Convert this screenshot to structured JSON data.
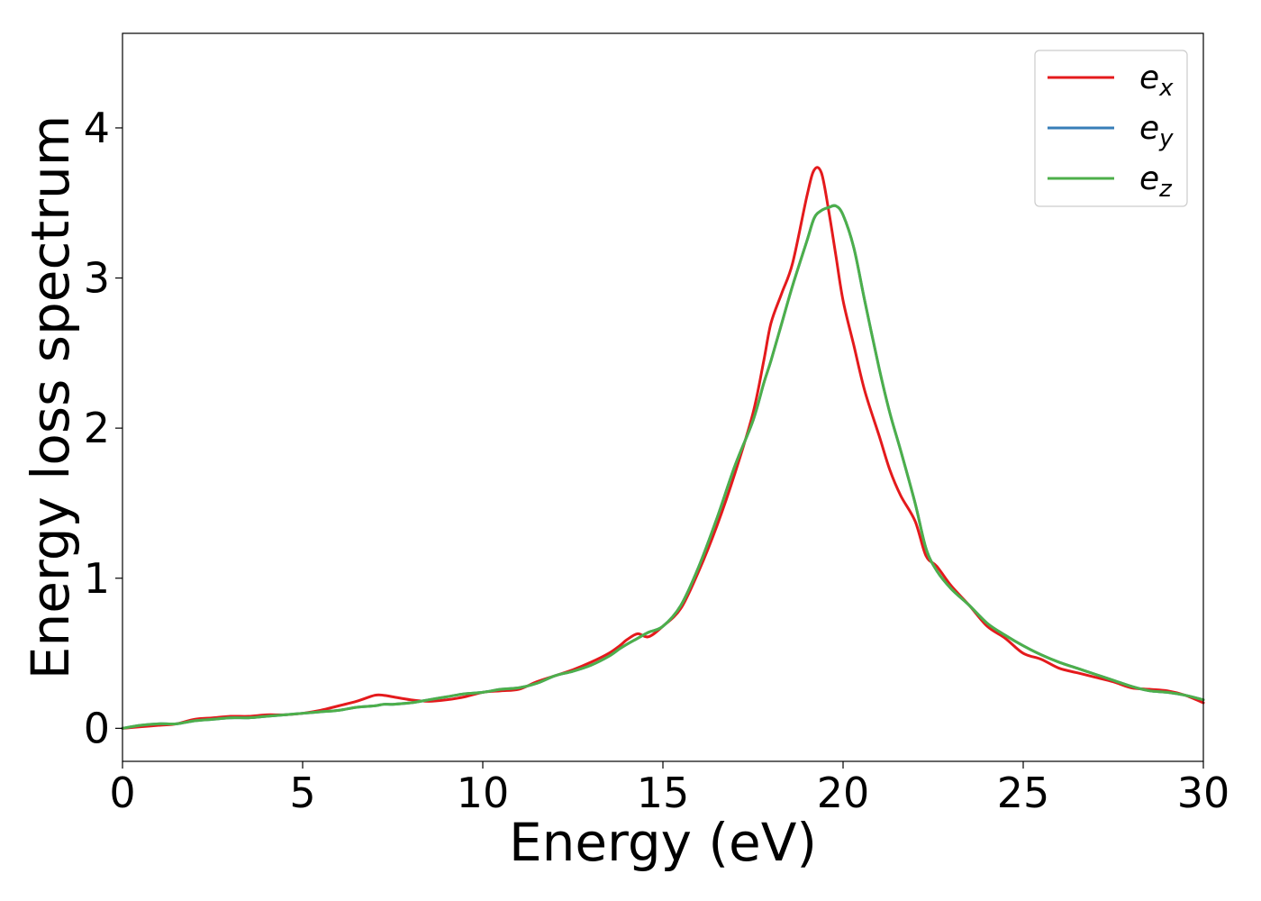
{
  "chart_data": {
    "type": "line",
    "xlabel": "Energy (eV)",
    "ylabel": "Energy loss spectrum",
    "xlim": [
      0,
      30
    ],
    "ylim": [
      -0.22,
      4.63
    ],
    "xticks": [
      "0",
      "5",
      "10",
      "15",
      "20",
      "25",
      "30"
    ],
    "yticks": [
      "0",
      "1",
      "2",
      "3",
      "4"
    ],
    "xtick_values": [
      0,
      5,
      10,
      15,
      20,
      25,
      30
    ],
    "ytick_values": [
      0,
      1,
      2,
      3,
      4
    ],
    "grid": false,
    "legend_position": "top-right",
    "x": [
      0,
      0.5,
      1,
      1.5,
      2,
      2.5,
      3,
      3.5,
      4,
      4.5,
      5,
      5.5,
      6,
      6.5,
      7,
      7.25,
      7.5,
      8,
      8.5,
      9,
      9.5,
      10,
      10.5,
      11,
      11.5,
      12,
      12.5,
      13,
      13.5,
      13.8,
      14,
      14.3,
      14.6,
      15,
      15.5,
      16,
      16.5,
      17,
      17.5,
      17.8,
      18,
      18.3,
      18.6,
      19,
      19.2,
      19.4,
      19.6,
      19.8,
      20,
      20.3,
      20.6,
      21,
      21.3,
      21.6,
      22,
      22.3,
      22.6,
      23,
      23.5,
      24,
      24.5,
      25,
      25.5,
      26,
      26.5,
      27,
      27.5,
      28,
      28.5,
      29,
      29.5,
      30
    ],
    "series": [
      {
        "name": "e",
        "sub": "x",
        "color": "#e41a1c",
        "values": [
          0.0,
          0.01,
          0.02,
          0.03,
          0.06,
          0.07,
          0.08,
          0.08,
          0.09,
          0.09,
          0.1,
          0.12,
          0.15,
          0.18,
          0.22,
          0.22,
          0.21,
          0.19,
          0.18,
          0.19,
          0.21,
          0.24,
          0.25,
          0.26,
          0.31,
          0.35,
          0.39,
          0.44,
          0.5,
          0.55,
          0.59,
          0.63,
          0.61,
          0.68,
          0.8,
          1.05,
          1.35,
          1.7,
          2.1,
          2.45,
          2.7,
          2.9,
          3.1,
          3.55,
          3.72,
          3.7,
          3.45,
          3.15,
          2.85,
          2.55,
          2.25,
          1.95,
          1.72,
          1.55,
          1.38,
          1.15,
          1.08,
          0.95,
          0.82,
          0.68,
          0.6,
          0.5,
          0.46,
          0.4,
          0.37,
          0.34,
          0.31,
          0.27,
          0.26,
          0.25,
          0.22,
          0.17
        ]
      },
      {
        "name": "e",
        "sub": "y",
        "color": "#377eb8",
        "values": [
          0.0,
          0.02,
          0.03,
          0.03,
          0.05,
          0.06,
          0.07,
          0.07,
          0.08,
          0.09,
          0.1,
          0.11,
          0.12,
          0.14,
          0.15,
          0.16,
          0.16,
          0.17,
          0.19,
          0.21,
          0.23,
          0.24,
          0.26,
          0.27,
          0.3,
          0.35,
          0.38,
          0.42,
          0.48,
          0.53,
          0.56,
          0.6,
          0.64,
          0.68,
          0.82,
          1.08,
          1.4,
          1.75,
          2.05,
          2.3,
          2.45,
          2.7,
          2.95,
          3.25,
          3.4,
          3.45,
          3.47,
          3.48,
          3.42,
          3.2,
          2.85,
          2.4,
          2.1,
          1.85,
          1.5,
          1.2,
          1.05,
          0.93,
          0.82,
          0.7,
          0.62,
          0.55,
          0.49,
          0.44,
          0.4,
          0.36,
          0.32,
          0.28,
          0.25,
          0.24,
          0.22,
          0.19
        ]
      },
      {
        "name": "e",
        "sub": "z",
        "color": "#4daf4a",
        "values": [
          0.0,
          0.02,
          0.03,
          0.03,
          0.05,
          0.06,
          0.07,
          0.07,
          0.08,
          0.09,
          0.1,
          0.11,
          0.12,
          0.14,
          0.15,
          0.16,
          0.16,
          0.17,
          0.19,
          0.21,
          0.23,
          0.24,
          0.26,
          0.27,
          0.3,
          0.35,
          0.38,
          0.42,
          0.48,
          0.53,
          0.56,
          0.6,
          0.64,
          0.68,
          0.82,
          1.08,
          1.4,
          1.75,
          2.05,
          2.3,
          2.45,
          2.7,
          2.95,
          3.25,
          3.4,
          3.45,
          3.47,
          3.48,
          3.42,
          3.2,
          2.85,
          2.4,
          2.1,
          1.85,
          1.5,
          1.2,
          1.05,
          0.93,
          0.82,
          0.7,
          0.62,
          0.55,
          0.49,
          0.44,
          0.4,
          0.36,
          0.32,
          0.28,
          0.25,
          0.24,
          0.22,
          0.19
        ]
      }
    ]
  }
}
